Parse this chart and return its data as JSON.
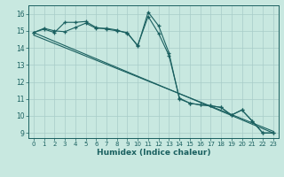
{
  "xlabel": "Humidex (Indice chaleur)",
  "background_color": "#c8e8e0",
  "grid_color": "#a8ccc8",
  "line_color": "#1a6060",
  "xlim": [
    -0.5,
    23.5
  ],
  "ylim": [
    8.7,
    16.5
  ],
  "yticks": [
    9,
    10,
    11,
    12,
    13,
    14,
    15,
    16
  ],
  "xticks": [
    0,
    1,
    2,
    3,
    4,
    5,
    6,
    7,
    8,
    9,
    10,
    11,
    12,
    13,
    14,
    15,
    16,
    17,
    18,
    19,
    20,
    21,
    22,
    23
  ],
  "series_wavy1": {
    "x": [
      0,
      1,
      2,
      3,
      4,
      5,
      6,
      7,
      8,
      9,
      10,
      11,
      12,
      13,
      14,
      15,
      16,
      17,
      18,
      19,
      20,
      21,
      22,
      23
    ],
    "y": [
      14.9,
      15.1,
      14.9,
      15.5,
      15.5,
      15.55,
      15.2,
      15.1,
      15.0,
      14.9,
      14.1,
      16.1,
      15.3,
      13.7,
      11.0,
      10.75,
      10.65,
      10.6,
      10.5,
      10.05,
      10.35,
      9.7,
      9.0,
      9.0
    ]
  },
  "series_wavy2": {
    "x": [
      0,
      1,
      2,
      3,
      4,
      5,
      6,
      7,
      8,
      9,
      10,
      11,
      12,
      13,
      14,
      15,
      16,
      17,
      18,
      19,
      20,
      21,
      22,
      23
    ],
    "y": [
      14.9,
      15.15,
      15.0,
      14.95,
      15.2,
      15.45,
      15.15,
      15.15,
      15.05,
      14.85,
      14.15,
      15.85,
      14.85,
      13.55,
      11.05,
      10.75,
      10.65,
      10.6,
      10.5,
      10.05,
      10.35,
      9.7,
      9.0,
      9.0
    ]
  },
  "series_line1": {
    "x": [
      0,
      23
    ],
    "y": [
      14.9,
      9.0
    ]
  },
  "series_line2": {
    "x": [
      0,
      23
    ],
    "y": [
      14.75,
      9.1
    ]
  }
}
